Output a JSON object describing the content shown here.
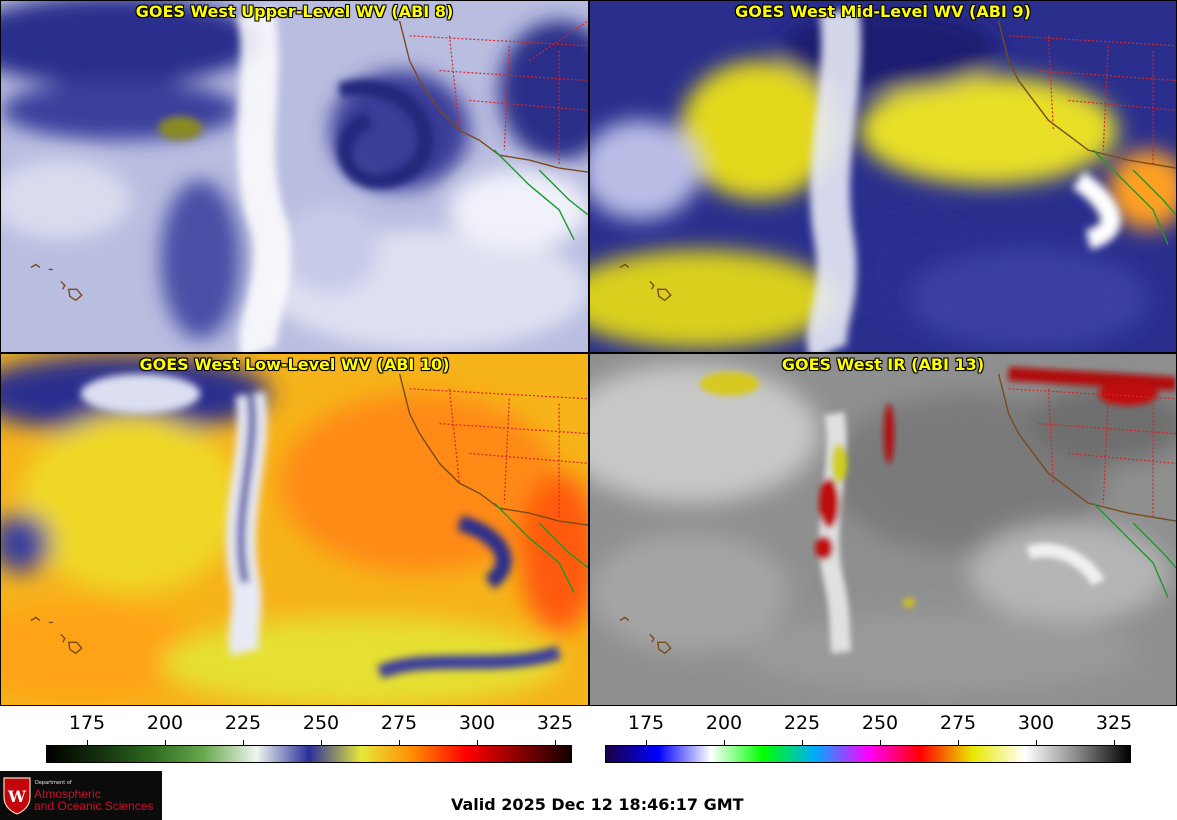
{
  "panels": [
    {
      "title": "GOES West Upper-Level WV (ABI 8)",
      "colormap": "wv-blue"
    },
    {
      "title": "GOES West Mid-Level WV (ABI 9)",
      "colormap": "wv-yellow"
    },
    {
      "title": "GOES West Low-Level WV (ABI 10)",
      "colormap": "wv-orange"
    },
    {
      "title": "GOES West IR (ABI 13)",
      "colormap": "ir-gray"
    }
  ],
  "colorbars": [
    {
      "ticks": [
        "175",
        "200",
        "225",
        "250",
        "275",
        "300",
        "325"
      ],
      "stops": [
        "#000000",
        "#14300e",
        "#2e6a1e",
        "#6aa84f",
        "#f0f6ee",
        "#2a2f9a",
        "#e8e83a",
        "#ff8a00",
        "#ff0000",
        "#8b0000",
        "#120000"
      ]
    },
    {
      "ticks": [
        "175",
        "200",
        "225",
        "250",
        "275",
        "300",
        "325"
      ],
      "stops": [
        "#1a0045",
        "#0000ff",
        "#ffffff",
        "#00ff00",
        "#00aaff",
        "#ff00ff",
        "#ff0000",
        "#e8e800",
        "#ffffff",
        "#888888",
        "#000000"
      ]
    }
  ],
  "footer": {
    "valid_text": "Valid 2025 Dec 12 18:46:17 GMT",
    "logo_dept": "Department of",
    "logo_line1": "Atmospheric",
    "logo_line2": "and Oceanic Sciences",
    "logo_letter": "W"
  }
}
